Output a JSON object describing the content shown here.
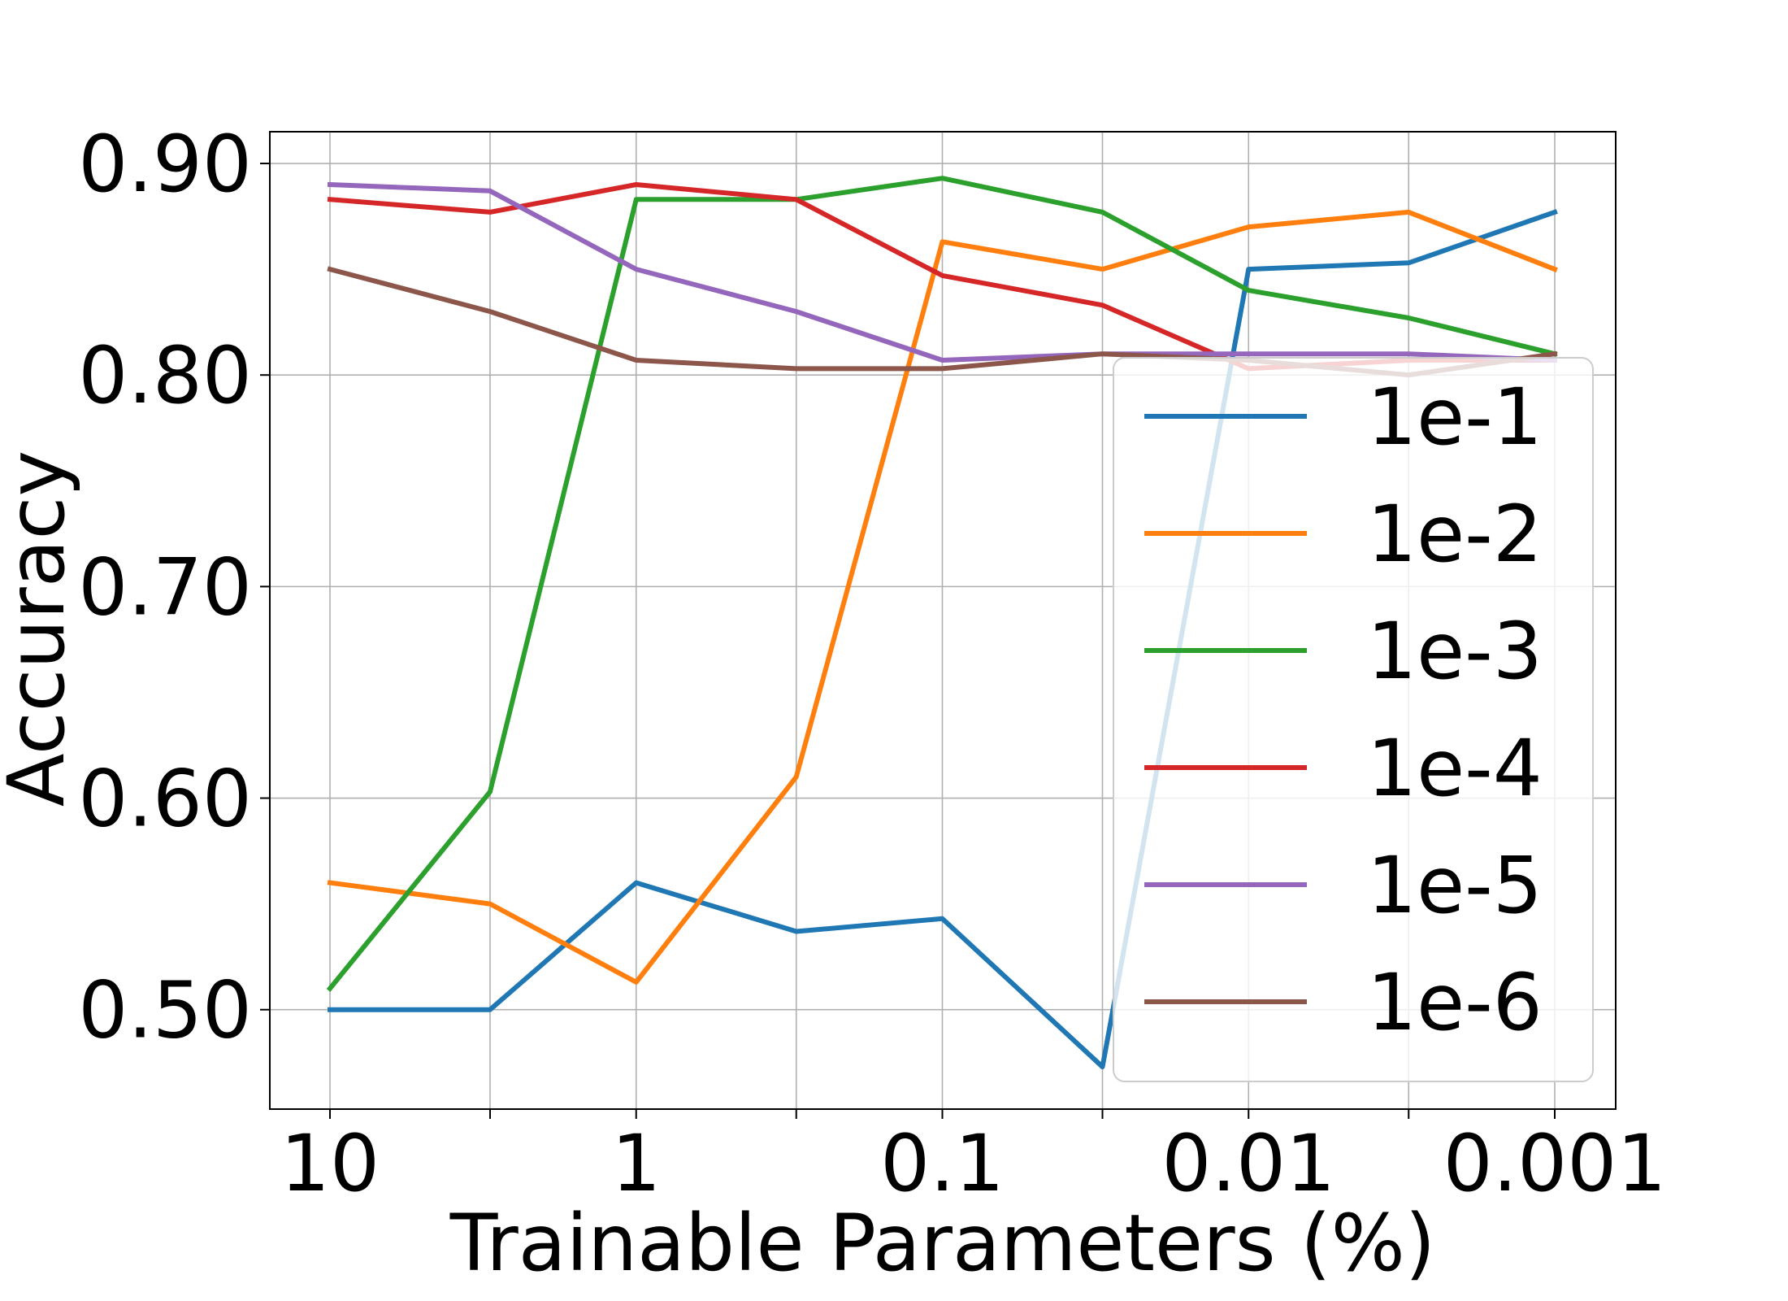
{
  "chart_data": {
    "type": "line",
    "xlabel": "Trainable Parameters (%)",
    "ylabel": "Accuracy",
    "x": [
      10,
      3,
      1,
      0.3,
      0.1,
      0.03,
      0.01,
      0.003,
      0.001
    ],
    "x_scale": "log, reversed",
    "x_tick_labels": [
      {
        "value": 10,
        "label": "10"
      },
      {
        "value": 1,
        "label": "1"
      },
      {
        "value": 0.1,
        "label": "0.1"
      },
      {
        "value": 0.01,
        "label": "0.01"
      },
      {
        "value": 0.001,
        "label": "0.001"
      }
    ],
    "y_tick_labels": [
      "0.50",
      "0.60",
      "0.70",
      "0.80",
      "0.90"
    ],
    "y_ticks": [
      0.5,
      0.6,
      0.7,
      0.8,
      0.9
    ],
    "ylim": [
      0.453,
      0.915
    ],
    "grid": true,
    "legend_position": "center-right",
    "series": [
      {
        "name": "1e-1",
        "color": "#1f77b4",
        "values": [
          0.5,
          0.5,
          0.56,
          0.537,
          0.543,
          0.473,
          0.85,
          0.853,
          0.877
        ]
      },
      {
        "name": "1e-2",
        "color": "#ff7f0e",
        "values": [
          0.56,
          0.55,
          0.513,
          0.61,
          0.863,
          0.85,
          0.87,
          0.877,
          0.85
        ]
      },
      {
        "name": "1e-3",
        "color": "#2ca02c",
        "values": [
          0.51,
          0.603,
          0.883,
          0.883,
          0.893,
          0.877,
          0.84,
          0.827,
          0.81
        ]
      },
      {
        "name": "1e-4",
        "color": "#d62728",
        "values": [
          0.883,
          0.877,
          0.89,
          0.883,
          0.847,
          0.833,
          0.803,
          0.807,
          0.807
        ]
      },
      {
        "name": "1e-5",
        "color": "#9467bd",
        "values": [
          0.89,
          0.887,
          0.85,
          0.83,
          0.807,
          0.81,
          0.81,
          0.81,
          0.807
        ]
      },
      {
        "name": "1e-6",
        "color": "#8c564b",
        "values": [
          0.85,
          0.83,
          0.807,
          0.803,
          0.803,
          0.81,
          0.807,
          0.8,
          0.81
        ]
      }
    ]
  }
}
